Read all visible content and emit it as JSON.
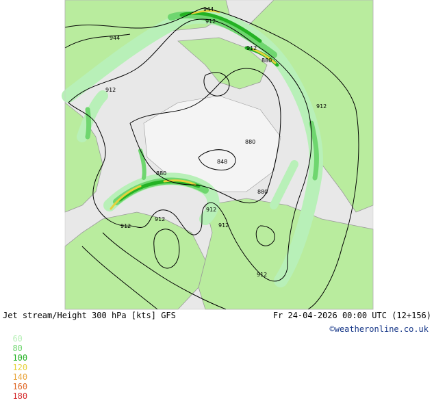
{
  "header": {
    "title": "Jet stream/Height 300 hPa [kts] GFS",
    "timestamp": "Fr 24-04-2026 00:00 UTC (12+156)",
    "credit": "©weatheronline.co.uk"
  },
  "legend": {
    "levels": [
      {
        "value": "60",
        "color": "#b8f0b8"
      },
      {
        "value": "80",
        "color": "#6fd66f"
      },
      {
        "value": "100",
        "color": "#23b223"
      },
      {
        "value": "120",
        "color": "#e6d23c"
      },
      {
        "value": "140",
        "color": "#e8a53c"
      },
      {
        "value": "160",
        "color": "#e06a2a"
      },
      {
        "value": "180",
        "color": "#d4282a"
      }
    ]
  },
  "map": {
    "colors": {
      "background": "#ffffff",
      "ocean": "#e8e8e8",
      "land": "#b9ec9e",
      "coast": "#9a9a9a",
      "jet60": "#b8f0b8",
      "jet80": "#6fd66f",
      "jet100": "#23b223",
      "jet120": "#e6d23c"
    },
    "contour_labels": [
      "944",
      "944",
      "912",
      "912",
      "912",
      "912",
      "912",
      "912",
      "912",
      "912",
      "912",
      "880",
      "880",
      "880",
      "880",
      "848"
    ]
  }
}
